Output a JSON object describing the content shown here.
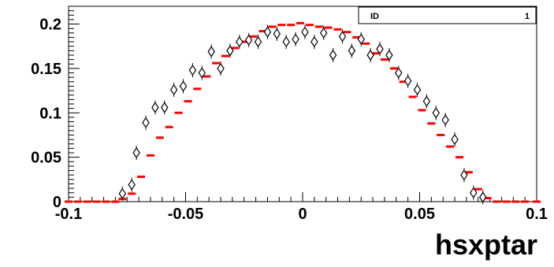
{
  "chart_data": {
    "type": "scatter",
    "xlabel": "hsxptar",
    "ylabel": "",
    "xlim": [
      -0.1,
      0.1
    ],
    "ylim": [
      0,
      0.22
    ],
    "x_ticks": [
      -0.1,
      -0.05,
      0,
      0.05,
      0.1
    ],
    "x_tick_labels": [
      "-0.1",
      "-0.05",
      "0",
      "0.05",
      "0.1"
    ],
    "y_ticks": [
      0,
      0.05,
      0.1,
      0.15,
      0.2
    ],
    "y_tick_labels": [
      "0",
      "0.05",
      "0.1",
      "0.15",
      "0.2"
    ],
    "stats_box": {
      "label": "ID",
      "value": "1"
    },
    "series": [
      {
        "style": "diamond-markers",
        "color": "#000000",
        "points": [
          [
            -0.077,
            0.009
          ],
          [
            -0.073,
            0.019
          ],
          [
            -0.071,
            0.055
          ],
          [
            -0.067,
            0.089
          ],
          [
            -0.063,
            0.106
          ],
          [
            -0.059,
            0.106
          ],
          [
            -0.055,
            0.126
          ],
          [
            -0.051,
            0.13
          ],
          [
            -0.047,
            0.148
          ],
          [
            -0.043,
            0.145
          ],
          [
            -0.039,
            0.169
          ],
          [
            -0.035,
            0.15
          ],
          [
            -0.031,
            0.17
          ],
          [
            -0.027,
            0.18
          ],
          [
            -0.023,
            0.182
          ],
          [
            -0.019,
            0.18
          ],
          [
            -0.015,
            0.191
          ],
          [
            -0.011,
            0.189
          ],
          [
            -0.007,
            0.18
          ],
          [
            -0.003,
            0.183
          ],
          [
            0.001,
            0.191
          ],
          [
            0.005,
            0.18
          ],
          [
            0.009,
            0.19
          ],
          [
            0.013,
            0.165
          ],
          [
            0.017,
            0.186
          ],
          [
            0.021,
            0.17
          ],
          [
            0.025,
            0.183
          ],
          [
            0.029,
            0.165
          ],
          [
            0.033,
            0.172
          ],
          [
            0.037,
            0.165
          ],
          [
            0.041,
            0.145
          ],
          [
            0.045,
            0.136
          ],
          [
            0.049,
            0.126
          ],
          [
            0.053,
            0.113
          ],
          [
            0.057,
            0.1
          ],
          [
            0.061,
            0.092
          ],
          [
            0.065,
            0.07
          ],
          [
            0.069,
            0.03
          ],
          [
            0.073,
            0.01
          ],
          [
            0.077,
            0.005
          ]
        ]
      },
      {
        "style": "red-bars",
        "color": "#ff0000",
        "points": [
          [
            -0.1,
            0.0
          ],
          [
            -0.096,
            0.0
          ],
          [
            -0.092,
            0.0
          ],
          [
            -0.088,
            0.0
          ],
          [
            -0.084,
            0.0
          ],
          [
            -0.08,
            0.0
          ],
          [
            -0.077,
            0.003
          ],
          [
            -0.073,
            0.009
          ],
          [
            -0.069,
            0.028
          ],
          [
            -0.065,
            0.052
          ],
          [
            -0.061,
            0.072
          ],
          [
            -0.057,
            0.084
          ],
          [
            -0.053,
            0.1
          ],
          [
            -0.049,
            0.113
          ],
          [
            -0.045,
            0.127
          ],
          [
            -0.041,
            0.141
          ],
          [
            -0.037,
            0.156
          ],
          [
            -0.033,
            0.164
          ],
          [
            -0.029,
            0.173
          ],
          [
            -0.025,
            0.18
          ],
          [
            -0.021,
            0.186
          ],
          [
            -0.017,
            0.192
          ],
          [
            -0.013,
            0.197
          ],
          [
            -0.009,
            0.199
          ],
          [
            -0.005,
            0.199
          ],
          [
            -0.001,
            0.201
          ],
          [
            0.003,
            0.199
          ],
          [
            0.007,
            0.197
          ],
          [
            0.011,
            0.196
          ],
          [
            0.015,
            0.194
          ],
          [
            0.019,
            0.191
          ],
          [
            0.023,
            0.185
          ],
          [
            0.027,
            0.178
          ],
          [
            0.031,
            0.167
          ],
          [
            0.035,
            0.16
          ],
          [
            0.039,
            0.15
          ],
          [
            0.043,
            0.135
          ],
          [
            0.047,
            0.118
          ],
          [
            0.051,
            0.103
          ],
          [
            0.055,
            0.088
          ],
          [
            0.059,
            0.075
          ],
          [
            0.063,
            0.062
          ],
          [
            0.067,
            0.05
          ],
          [
            0.071,
            0.033
          ],
          [
            0.075,
            0.014
          ],
          [
            0.079,
            0.004
          ],
          [
            0.083,
            0.0
          ],
          [
            0.087,
            0.0
          ],
          [
            0.091,
            0.0
          ],
          [
            0.095,
            0.0
          ],
          [
            0.1,
            0.0
          ]
        ]
      }
    ]
  }
}
